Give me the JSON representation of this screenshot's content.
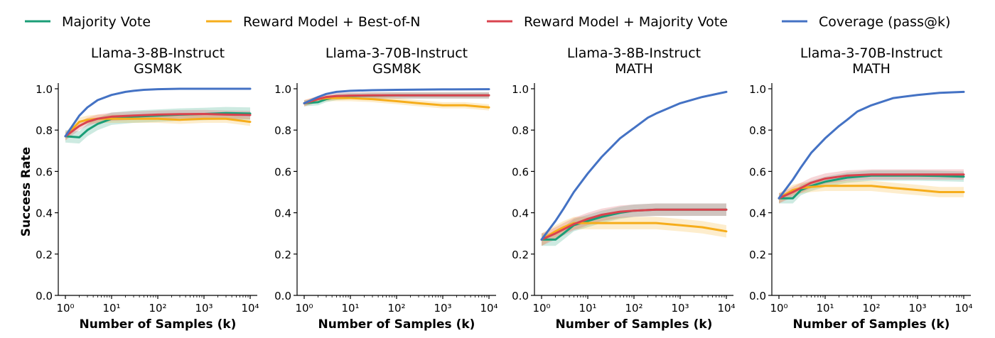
{
  "figure": {
    "ylabel": "Success Rate",
    "legend": [
      {
        "name": "Majority Vote",
        "color": "#1a9e77"
      },
      {
        "name": "Reward Model + Best-of-N",
        "color": "#f6ad1b"
      },
      {
        "name": "Reward Model + Majority Vote",
        "color": "#d9434e"
      },
      {
        "name": "Coverage (pass@k)",
        "color": "#4472c4"
      }
    ]
  },
  "chart_data": [
    {
      "type": "line",
      "title": "Llama-3-8B-Instruct\nGSM8K",
      "xlabel": "Number of Samples (k)",
      "ylabel": "Success Rate",
      "xscale": "log",
      "xlim": [
        1,
        10000
      ],
      "ylim": [
        0,
        1
      ],
      "xticks": [
        1,
        10,
        100,
        1000,
        10000
      ],
      "yticks": [
        0.0,
        0.2,
        0.4,
        0.6,
        0.8,
        1.0
      ],
      "series": [
        {
          "name": "Majority Vote",
          "x": [
            1,
            2,
            3,
            5,
            10,
            30,
            100,
            300,
            1000,
            3000,
            10000
          ],
          "y": [
            0.77,
            0.765,
            0.8,
            0.83,
            0.855,
            0.865,
            0.87,
            0.875,
            0.878,
            0.882,
            0.88
          ],
          "band": 0.03
        },
        {
          "name": "Reward Model + Best-of-N",
          "x": [
            1,
            2,
            3,
            5,
            10,
            30,
            100,
            300,
            1000,
            3000,
            10000
          ],
          "y": [
            0.77,
            0.84,
            0.85,
            0.855,
            0.855,
            0.855,
            0.855,
            0.85,
            0.855,
            0.855,
            0.84
          ],
          "band": 0.02
        },
        {
          "name": "Reward Model + Majority Vote",
          "x": [
            1,
            2,
            3,
            5,
            10,
            30,
            100,
            300,
            1000,
            3000,
            10000
          ],
          "y": [
            0.77,
            0.82,
            0.84,
            0.855,
            0.865,
            0.87,
            0.875,
            0.877,
            0.878,
            0.875,
            0.873
          ],
          "band": 0.02
        },
        {
          "name": "Coverage (pass@k)",
          "x": [
            1,
            2,
            3,
            5,
            10,
            20,
            30,
            50,
            100,
            300,
            1000,
            3000,
            10000
          ],
          "y": [
            0.77,
            0.87,
            0.91,
            0.945,
            0.97,
            0.985,
            0.99,
            0.995,
            0.998,
            1.0,
            1.0,
            1.0,
            1.0
          ],
          "band": 0
        }
      ]
    },
    {
      "type": "line",
      "title": "Llama-3-70B-Instruct\nGSM8K",
      "xlabel": "Number of Samples (k)",
      "ylabel": "",
      "xscale": "log",
      "xlim": [
        1,
        10000
      ],
      "ylim": [
        0,
        1
      ],
      "xticks": [
        1,
        10,
        100,
        1000,
        10000
      ],
      "yticks": [
        0.0,
        0.2,
        0.4,
        0.6,
        0.8,
        1.0
      ],
      "series": [
        {
          "name": "Majority Vote",
          "x": [
            1,
            2,
            3,
            5,
            10,
            30,
            100,
            1000,
            10000
          ],
          "y": [
            0.93,
            0.935,
            0.95,
            0.96,
            0.965,
            0.967,
            0.968,
            0.968,
            0.968
          ],
          "band": 0.015
        },
        {
          "name": "Reward Model + Best-of-N",
          "x": [
            1,
            2,
            3,
            5,
            10,
            30,
            100,
            300,
            1000,
            3000,
            10000
          ],
          "y": [
            0.93,
            0.95,
            0.955,
            0.955,
            0.955,
            0.95,
            0.94,
            0.93,
            0.92,
            0.92,
            0.91
          ],
          "band": 0.015
        },
        {
          "name": "Reward Model + Majority Vote",
          "x": [
            1,
            2,
            3,
            5,
            10,
            30,
            100,
            1000,
            10000
          ],
          "y": [
            0.93,
            0.95,
            0.96,
            0.965,
            0.967,
            0.968,
            0.968,
            0.968,
            0.968
          ],
          "band": 0.015
        },
        {
          "name": "Coverage (pass@k)",
          "x": [
            1,
            2,
            3,
            5,
            10,
            30,
            100,
            1000,
            10000
          ],
          "y": [
            0.93,
            0.96,
            0.975,
            0.985,
            0.99,
            0.993,
            0.995,
            0.997,
            0.998
          ],
          "band": 0
        }
      ]
    },
    {
      "type": "line",
      "title": "Llama-3-8B-Instruct\nMATH",
      "xlabel": "Number of Samples (k)",
      "ylabel": "",
      "xscale": "log",
      "xlim": [
        1,
        10000
      ],
      "ylim": [
        0,
        1
      ],
      "xticks": [
        1,
        10,
        100,
        1000,
        10000
      ],
      "yticks": [
        0.0,
        0.2,
        0.4,
        0.6,
        0.8,
        1.0
      ],
      "series": [
        {
          "name": "Majority Vote",
          "x": [
            1,
            2,
            3,
            5,
            10,
            20,
            50,
            100,
            300,
            1000,
            3000,
            10000
          ],
          "y": [
            0.27,
            0.27,
            0.3,
            0.34,
            0.36,
            0.38,
            0.4,
            0.41,
            0.415,
            0.415,
            0.415,
            0.415
          ],
          "band": 0.03
        },
        {
          "name": "Reward Model + Best-of-N",
          "x": [
            1,
            2,
            3,
            5,
            10,
            30,
            100,
            300,
            1000,
            3000,
            10000
          ],
          "y": [
            0.27,
            0.31,
            0.33,
            0.35,
            0.35,
            0.35,
            0.35,
            0.35,
            0.34,
            0.33,
            0.31
          ],
          "band": 0.03
        },
        {
          "name": "Reward Model + Majority Vote",
          "x": [
            1,
            2,
            3,
            5,
            10,
            20,
            50,
            100,
            300,
            1000,
            3000,
            10000
          ],
          "y": [
            0.27,
            0.3,
            0.32,
            0.345,
            0.37,
            0.39,
            0.405,
            0.41,
            0.415,
            0.415,
            0.415,
            0.415
          ],
          "band": 0.03
        },
        {
          "name": "Coverage (pass@k)",
          "x": [
            1,
            2,
            3,
            5,
            10,
            20,
            30,
            50,
            100,
            200,
            300,
            1000,
            3000,
            10000
          ],
          "y": [
            0.27,
            0.36,
            0.42,
            0.5,
            0.59,
            0.67,
            0.71,
            0.76,
            0.81,
            0.86,
            0.88,
            0.93,
            0.96,
            0.985
          ],
          "band": 0
        }
      ]
    },
    {
      "type": "line",
      "title": "Llama-3-70B-Instruct\nMATH",
      "xlabel": "Number of Samples (k)",
      "ylabel": "",
      "xscale": "log",
      "xlim": [
        1,
        10000
      ],
      "ylim": [
        0,
        1
      ],
      "xticks": [
        1,
        10,
        100,
        1000,
        10000
      ],
      "yticks": [
        0.0,
        0.2,
        0.4,
        0.6,
        0.8,
        1.0
      ],
      "series": [
        {
          "name": "Majority Vote",
          "x": [
            1,
            2,
            3,
            5,
            10,
            30,
            100,
            300,
            1000,
            3000,
            10000
          ],
          "y": [
            0.47,
            0.47,
            0.51,
            0.53,
            0.55,
            0.57,
            0.58,
            0.58,
            0.58,
            0.578,
            0.575
          ],
          "band": 0.025
        },
        {
          "name": "Reward Model + Best-of-N",
          "x": [
            1,
            2,
            3,
            5,
            10,
            30,
            100,
            300,
            1000,
            3000,
            10000
          ],
          "y": [
            0.47,
            0.51,
            0.52,
            0.525,
            0.53,
            0.53,
            0.53,
            0.52,
            0.51,
            0.5,
            0.5
          ],
          "band": 0.025
        },
        {
          "name": "Reward Model + Majority Vote",
          "x": [
            1,
            2,
            3,
            5,
            10,
            30,
            100,
            300,
            1000,
            3000,
            10000
          ],
          "y": [
            0.47,
            0.5,
            0.52,
            0.545,
            0.565,
            0.58,
            0.585,
            0.585,
            0.585,
            0.585,
            0.585
          ],
          "band": 0.025
        },
        {
          "name": "Coverage (pass@k)",
          "x": [
            1,
            2,
            3,
            5,
            10,
            20,
            30,
            50,
            100,
            300,
            1000,
            3000,
            10000
          ],
          "y": [
            0.47,
            0.56,
            0.62,
            0.69,
            0.76,
            0.82,
            0.85,
            0.89,
            0.92,
            0.955,
            0.97,
            0.98,
            0.985
          ],
          "band": 0
        }
      ]
    }
  ]
}
